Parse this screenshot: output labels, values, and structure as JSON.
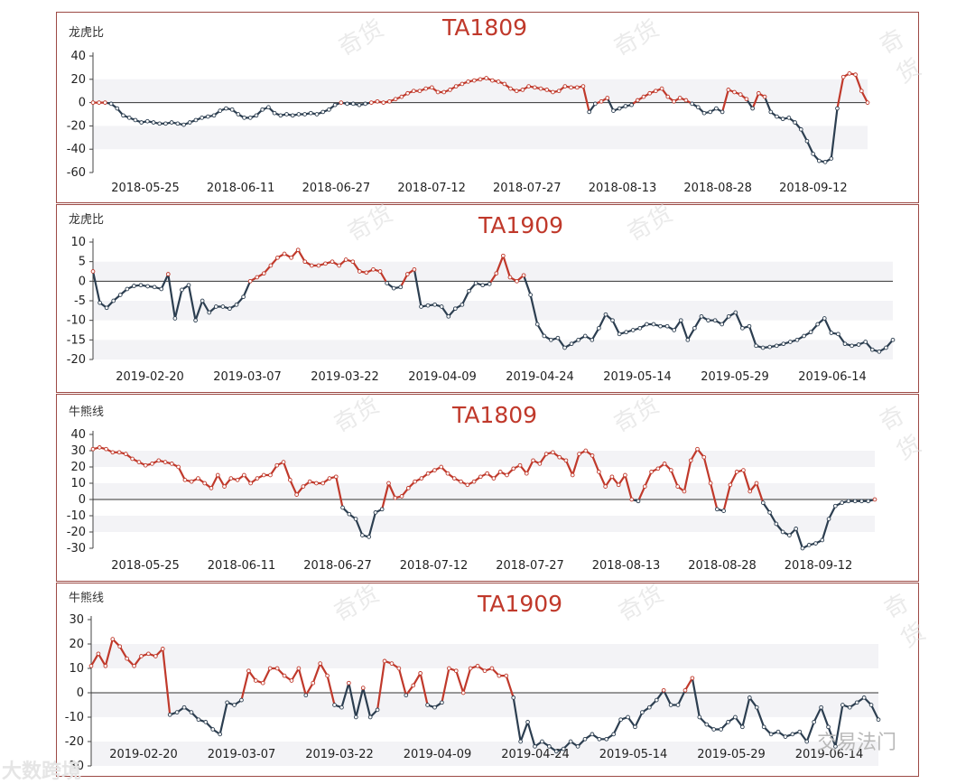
{
  "colors": {
    "positive": "#c0392b",
    "negative": "#2c3e50",
    "band": "#f3f3f6",
    "zero": "#333333"
  },
  "footer": {
    "left": "大数跨境",
    "right": "交易法门"
  },
  "watermark": "奇货",
  "chart_data": [
    {
      "type": "line",
      "title": "TA1809",
      "ylabel": "龙虎比",
      "ylim": [
        -60,
        40
      ],
      "yticks": [
        40,
        20,
        0,
        -20,
        -40,
        -60
      ],
      "xticks": [
        "2018-05-25",
        "2018-06-11",
        "2018-06-27",
        "2018-07-12",
        "2018-07-27",
        "2018-08-13",
        "2018-08-28",
        "2018-09-12"
      ],
      "series": [
        {
          "values": [
            0,
            0,
            0,
            -1,
            -5,
            -11,
            -13,
            -15,
            -17,
            -16,
            -17,
            -18,
            -18,
            -17,
            -18,
            -19,
            -17,
            -15,
            -13,
            -12,
            -11,
            -7,
            -5,
            -6,
            -10,
            -13,
            -13,
            -11,
            -6,
            -4,
            -9,
            -11,
            -10,
            -11,
            -10,
            -10,
            -9,
            -10,
            -8,
            -6,
            -2,
            0,
            -1,
            -1,
            -2,
            -1,
            0,
            1,
            0,
            1,
            3,
            5,
            8,
            10,
            10,
            12,
            13,
            9,
            9,
            11,
            14,
            16,
            18,
            19,
            20,
            21,
            19,
            18,
            16,
            12,
            10,
            11,
            14,
            13,
            12,
            11,
            9,
            10,
            14,
            13,
            13,
            14,
            -8,
            -1,
            1,
            4,
            -7,
            -5,
            -3,
            -2,
            2,
            5,
            8,
            10,
            12,
            5,
            1,
            4,
            2,
            -1,
            -4,
            -9,
            -8,
            -5,
            -8,
            11,
            9,
            7,
            3,
            -5,
            8,
            5,
            -8,
            -12,
            -14,
            -13,
            -17,
            -23,
            -33,
            -44,
            -50,
            -51,
            -48,
            -5,
            22,
            25,
            24,
            10,
            0
          ]
        }
      ]
    },
    {
      "type": "line",
      "title": "TA1909",
      "ylabel": "龙虎比",
      "ylim": [
        -20,
        10
      ],
      "yticks": [
        10,
        5,
        0,
        -5,
        -10,
        -15,
        -20
      ],
      "xticks": [
        "2019-02-20",
        "2019-03-07",
        "2019-03-22",
        "2019-04-09",
        "2019-04-24",
        "2019-05-14",
        "2019-05-29",
        "2019-06-14"
      ],
      "series": [
        {
          "values": [
            2.5,
            -5.5,
            -6.8,
            -5,
            -3.5,
            -2,
            -1.2,
            -1,
            -1.3,
            -1.5,
            -2,
            1.8,
            -9.5,
            -2.2,
            -1,
            -10,
            -5,
            -8,
            -6.5,
            -6.5,
            -7,
            -6,
            -4,
            0,
            1,
            2,
            4,
            6,
            7,
            6,
            8,
            5,
            4,
            4,
            4.5,
            5,
            4,
            5.5,
            5,
            2.5,
            2.2,
            3,
            2.5,
            -0.5,
            -1.8,
            -1.5,
            1.8,
            3,
            -6.5,
            -6.2,
            -6,
            -6.5,
            -9,
            -7,
            -6,
            -2.5,
            -0.5,
            -1,
            -0.7,
            2,
            6.5,
            1,
            0,
            1.5,
            -3.5,
            -11,
            -14,
            -15,
            -14.5,
            -17,
            -16,
            -15,
            -14,
            -15,
            -12,
            -8.5,
            -10,
            -13.5,
            -13,
            -12.5,
            -12,
            -11,
            -11,
            -11.5,
            -11.5,
            -12.5,
            -10,
            -15,
            -12,
            -9,
            -10,
            -10,
            -11,
            -9,
            -8,
            -12,
            -11.5,
            -16.5,
            -17,
            -16.8,
            -16.5,
            -16,
            -15.5,
            -15,
            -14,
            -13,
            -11,
            -9.5,
            -13.2,
            -13.5,
            -16,
            -16.5,
            -16.2,
            -15.5,
            -17.5,
            -18,
            -17,
            -15
          ]
        }
      ]
    },
    {
      "type": "line",
      "title": "TA1809",
      "ylabel": "牛熊线",
      "ylim": [
        -30,
        40
      ],
      "yticks": [
        40,
        30,
        20,
        10,
        0,
        -10,
        -20,
        -30
      ],
      "xticks": [
        "2018-05-25",
        "2018-06-11",
        "2018-06-27",
        "2018-07-12",
        "2018-07-27",
        "2018-08-13",
        "2018-08-28",
        "2018-09-12"
      ],
      "series": [
        {
          "values": [
            31,
            32,
            31,
            29,
            29,
            28,
            25,
            23,
            21,
            22,
            24,
            23,
            22,
            20,
            12,
            11,
            13,
            10,
            7,
            15,
            8,
            13,
            12,
            15,
            10,
            13,
            15,
            15,
            21,
            23,
            12,
            3,
            8,
            11,
            10,
            10,
            13,
            14,
            -5,
            -9,
            -12,
            -22,
            -23,
            -8,
            -6,
            10,
            1,
            2,
            7,
            11,
            13,
            16,
            18,
            20,
            16,
            13,
            11,
            9,
            11,
            14,
            16,
            13,
            17,
            15,
            19,
            21,
            16,
            24,
            22,
            28,
            29,
            26,
            24,
            15,
            28,
            30,
            27,
            17,
            8,
            14,
            9,
            15,
            0,
            -1,
            8,
            17,
            19,
            22,
            18,
            8,
            5,
            24,
            31,
            26,
            10,
            -6,
            -7,
            9,
            17,
            18,
            5,
            10,
            -2,
            -8,
            -15,
            -20,
            -22,
            -18,
            -30,
            -28,
            -27,
            -25,
            -12,
            -4,
            -2,
            -1,
            -1,
            -1,
            -1,
            0
          ]
        }
      ]
    },
    {
      "type": "line",
      "title": "TA1909",
      "ylabel": "牛熊线",
      "ylim": [
        -30,
        30
      ],
      "yticks": [
        30,
        20,
        10,
        0,
        -10,
        -20,
        -30
      ],
      "xticks": [
        "2019-02-20",
        "2019-03-07",
        "2019-03-22",
        "2019-04-09",
        "2019-04-24",
        "2019-05-14",
        "2019-05-29",
        "2019-06-14"
      ],
      "series": [
        {
          "values": [
            11,
            16,
            11,
            22,
            19,
            14,
            11,
            15,
            16,
            15,
            18,
            -9,
            -8,
            -6,
            -8,
            -11,
            -12,
            -15,
            -17,
            -4,
            -5,
            -3,
            9,
            5,
            4,
            10,
            10,
            7,
            5,
            10,
            -1,
            4,
            12,
            7,
            -5,
            -6,
            4,
            -10,
            2,
            -10,
            -7,
            13,
            12,
            10,
            -1,
            3,
            8,
            -5,
            -6,
            -4,
            10,
            9,
            0,
            10,
            11,
            9,
            10,
            7,
            7,
            -2,
            -20,
            -12,
            -22,
            -20,
            -22,
            -24,
            -23,
            -20,
            -22,
            -19,
            -17,
            -19,
            -19,
            -17,
            -11,
            -10,
            -14,
            -8,
            -6,
            -3,
            1,
            -5,
            -5,
            1,
            6,
            -10,
            -13,
            -15,
            -15,
            -12,
            -10,
            -14,
            -2,
            -6,
            -14,
            -17,
            -16,
            -18,
            -17,
            -16,
            -20,
            -12,
            -6,
            -14,
            -22,
            -5,
            -6,
            -4,
            -2,
            -5,
            -11
          ]
        }
      ]
    }
  ]
}
